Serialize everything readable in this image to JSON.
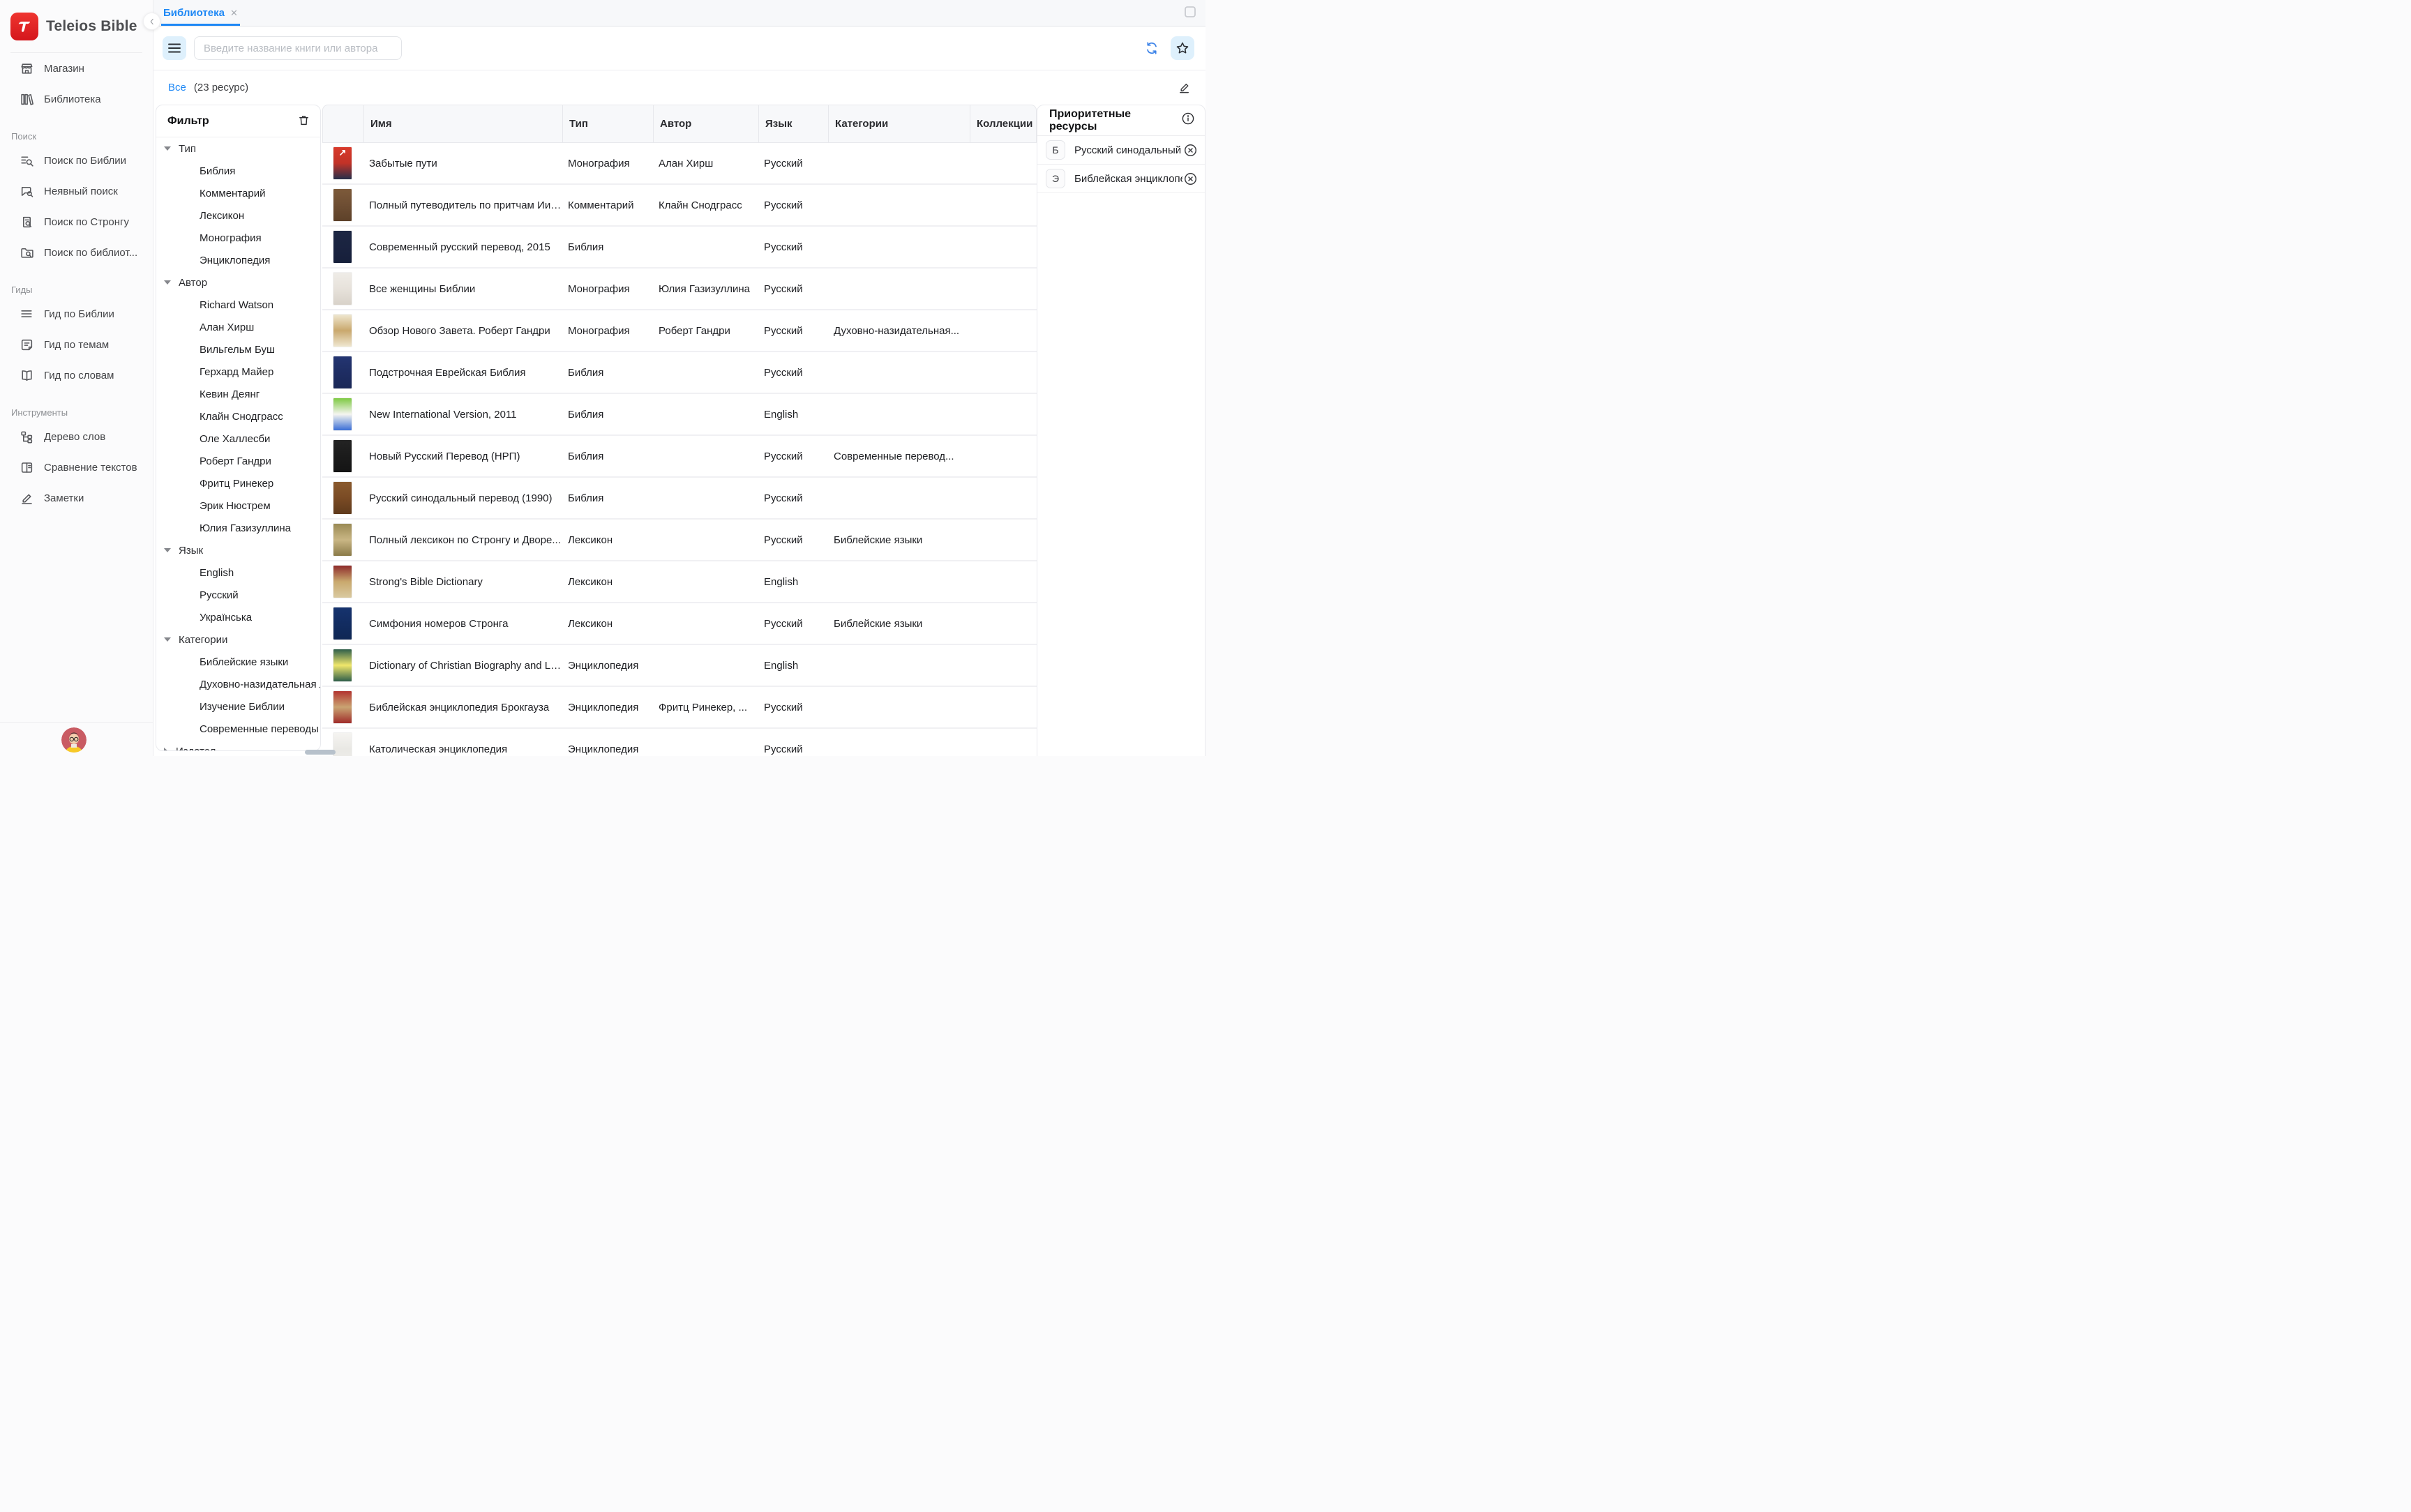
{
  "app": {
    "title": "Teleios Bible"
  },
  "sidebar": {
    "sections": [
      {
        "label": "",
        "items": [
          {
            "icon": "store-icon",
            "label": "Магазин"
          },
          {
            "icon": "library-icon",
            "label": "Библиотека"
          }
        ]
      },
      {
        "label": "Поиск",
        "items": [
          {
            "icon": "bible-search-icon",
            "label": "Поиск по Библии"
          },
          {
            "icon": "implicit-search-icon",
            "label": "Неявный поиск"
          },
          {
            "icon": "strong-search-icon",
            "label": "Поиск по Стронгу"
          },
          {
            "icon": "library-search-icon",
            "label": "Поиск по библиот..."
          }
        ]
      },
      {
        "label": "Гиды",
        "items": [
          {
            "icon": "bible-guide-icon",
            "label": "Гид по Библии"
          },
          {
            "icon": "topics-guide-icon",
            "label": "Гид по темам"
          },
          {
            "icon": "words-guide-icon",
            "label": "Гид по словам"
          }
        ]
      },
      {
        "label": "Инструменты",
        "items": [
          {
            "icon": "word-tree-icon",
            "label": "Дерево слов"
          },
          {
            "icon": "compare-texts-icon",
            "label": "Сравнение текстов"
          },
          {
            "icon": "notes-icon",
            "label": "Заметки"
          }
        ]
      }
    ]
  },
  "tabbar": {
    "tab": "Библиотека",
    "close": "✕"
  },
  "toolbar": {
    "search_placeholder": "Введите название книги или автора"
  },
  "filters_bar": {
    "all": "Все",
    "count": "(23 ресурс)"
  },
  "filter_panel": {
    "title": "Фильтр",
    "sections": [
      {
        "label": "Тип",
        "expanded": true,
        "items": [
          "Библия",
          "Комментарий",
          "Лексикон",
          "Монография",
          "Энциклопедия"
        ]
      },
      {
        "label": "Автор",
        "expanded": true,
        "items": [
          "Richard Watson",
          "Алан Хирш",
          "Вильгельм Буш",
          "Герхард Майер",
          "Кевин Деянг",
          "Клайн Снодграсс",
          "Оле Халлесби",
          "Роберт Гандри",
          "Фритц Ринекер",
          "Эрик Нюстрем",
          "Юлия Газизуллина"
        ]
      },
      {
        "label": "Язык",
        "expanded": true,
        "items": [
          "English",
          "Русский",
          "Українська"
        ]
      },
      {
        "label": "Категории",
        "expanded": true,
        "items": [
          "Библейские языки",
          "Духовно-назидательная лит...",
          "Изучение Библии",
          "Современные переводы Би..."
        ]
      },
      {
        "label": "Издател...",
        "expanded": false,
        "items": []
      }
    ]
  },
  "table": {
    "columns": [
      "",
      "Имя",
      "Тип",
      "Автор",
      "Язык",
      "Категории",
      "Коллекции"
    ],
    "rows": [
      {
        "name": "Забытые пути",
        "type": "Монография",
        "author": "Алан Хирш",
        "lang": "Русский",
        "categories": "",
        "collections": "",
        "cover": [
          "#d93a2b",
          "#c23227",
          "#26304b"
        ],
        "glyph": "↗"
      },
      {
        "name": "Полный путеводитель по притчам Иис...",
        "type": "Комментарий",
        "author": "Клайн Снодграсс",
        "lang": "Русский",
        "categories": "",
        "collections": "",
        "cover": [
          "#7d5a3a",
          "#6e4e33",
          "#5d4129"
        ],
        "glyph": ""
      },
      {
        "name": "Современный русский перевод, 2015",
        "type": "Библия",
        "author": "",
        "lang": "Русский",
        "categories": "",
        "collections": "",
        "cover": [
          "#1c2642",
          "#1a2340",
          "#161f3a"
        ],
        "glyph": ""
      },
      {
        "name": "Все женщины Библии",
        "type": "Монография",
        "author": "Юлия Газизуллина",
        "lang": "Русский",
        "categories": "",
        "collections": "",
        "cover": [
          "#efece7",
          "#e7e2db",
          "#d8d2c9"
        ],
        "glyph": ""
      },
      {
        "name": "Обзор Нового Завета. Роберт Гандри",
        "type": "Монография",
        "author": "Роберт Гандри",
        "lang": "Русский",
        "categories": "Духовно-назидательная...",
        "collections": "",
        "cover": [
          "#efe7d0",
          "#c9a86d",
          "#efe7d0"
        ],
        "glyph": ""
      },
      {
        "name": "Подстрочная Еврейская Библия",
        "type": "Библия",
        "author": "",
        "lang": "Русский",
        "categories": "",
        "collections": "",
        "cover": [
          "#243572",
          "#1e2d63",
          "#1a2857"
        ],
        "glyph": ""
      },
      {
        "name": "New International Version, 2011",
        "type": "Библия",
        "author": "",
        "lang": "English",
        "categories": "",
        "collections": "",
        "cover": [
          "#7dc943",
          "#f5f5f0",
          "#3a6ed6"
        ],
        "glyph": ""
      },
      {
        "name": "Новый Русский Перевод (НРП)",
        "type": "Библия",
        "author": "",
        "lang": "Русский",
        "categories": "Современные перевод...",
        "collections": "",
        "cover": [
          "#232323",
          "#1b1b1b",
          "#141414"
        ],
        "glyph": ""
      },
      {
        "name": "Русский синодальный перевод (1990)",
        "type": "Библия",
        "author": "",
        "lang": "Русский",
        "categories": "",
        "collections": "",
        "cover": [
          "#8a5a2e",
          "#7a4b24",
          "#5f3a1c"
        ],
        "glyph": ""
      },
      {
        "name": "Полный лексикон по Стронгу и Дворе...",
        "type": "Лексикон",
        "author": "",
        "lang": "Русский",
        "categories": "Библейские языки",
        "collections": "",
        "cover": [
          "#9a8a55",
          "#c9b684",
          "#8a7a48"
        ],
        "glyph": ""
      },
      {
        "name": "Strong's Bible Dictionary",
        "type": "Лексикон",
        "author": "",
        "lang": "English",
        "categories": "",
        "collections": "",
        "cover": [
          "#8e2b2b",
          "#c9a96e",
          "#d9c9a0"
        ],
        "glyph": ""
      },
      {
        "name": "Симфония номеров Стронга",
        "type": "Лексикон",
        "author": "",
        "lang": "Русский",
        "categories": "Библейские языки",
        "collections": "",
        "cover": [
          "#16336e",
          "#122c61",
          "#0f2754"
        ],
        "glyph": ""
      },
      {
        "name": "Dictionary of Christian Biography and Lit...",
        "type": "Энциклопедия",
        "author": "",
        "lang": "English",
        "categories": "",
        "collections": "",
        "cover": [
          "#2e5e4a",
          "#f0e76b",
          "#2e5e4a"
        ],
        "glyph": ""
      },
      {
        "name": "Библейская энциклопедия Брокгауза",
        "type": "Энциклопедия",
        "author": "Фритц Ринекер, ...",
        "lang": "Русский",
        "categories": "",
        "collections": "",
        "cover": [
          "#b23430",
          "#c9a472",
          "#a02c2a"
        ],
        "glyph": ""
      },
      {
        "name": "Католическая энциклопедия",
        "type": "Энциклопедия",
        "author": "",
        "lang": "Русский",
        "categories": "",
        "collections": "",
        "cover": [
          "#f5f4f1",
          "#e9e8e4",
          "#f0efec"
        ],
        "glyph": ""
      },
      {
        "name": "",
        "type": "",
        "author": "",
        "lang": "",
        "categories": "",
        "collections": "",
        "cover": [
          "#9db6c9",
          "#8aa6bb",
          "#9db6c9"
        ],
        "glyph": ""
      }
    ]
  },
  "priority_panel": {
    "title": "Приоритетные ресурсы",
    "items": [
      {
        "badge": "Б",
        "name": "Русский синодальный п..."
      },
      {
        "badge": "Э",
        "name": "Библейская энциклопе..."
      }
    ]
  },
  "colors": {
    "accent_blue": "#1e88f5",
    "brand_red": "#e02026",
    "light_blue_button": "#def0fc"
  }
}
